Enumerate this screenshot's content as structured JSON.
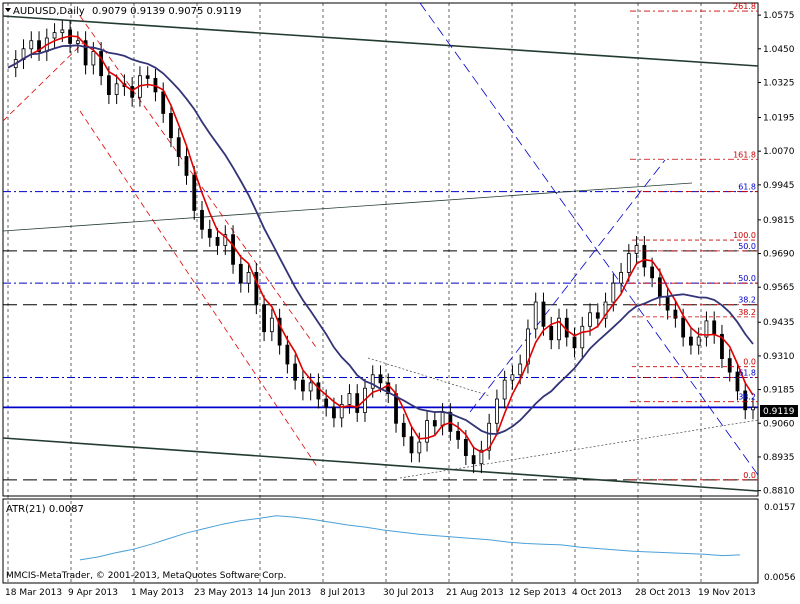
{
  "header": {
    "symbol_label": "AUDUSD,Daily",
    "ohlc_text": "0.9079 0.9139 0.9075 0.9119"
  },
  "indicator": {
    "label": "ATR(21) 0.0087",
    "axis_top": "0.0157",
    "axis_bottom": "0.0056"
  },
  "copyright": "MMCIS-MetaTrader, © 2001-2013, MetaQuotes Software Corp.",
  "colors": {
    "background": "#ffffff",
    "candle": "#000000",
    "ma_fast": "#e00000",
    "ma_slow": "#333377",
    "atr_line": "#4aa0d8",
    "channel": "#e00000",
    "trend_blue": "#0000cc",
    "trend_dark": "#233b2f",
    "fib": "#cc0000"
  },
  "chart_data": [
    {
      "type": "candlestick",
      "symbol": "AUDUSD",
      "timeframe": "Daily",
      "current_price": "0.9119",
      "ohlc_last": {
        "open": 0.9079,
        "high": 0.9139,
        "low": 0.9075,
        "close": 0.9119
      },
      "y_ticks": [
        "1.0575",
        "1.0450",
        "1.0325",
        "1.0195",
        "1.0070",
        "0.9945",
        "0.9815",
        "0.9690",
        "0.9565",
        "0.9435",
        "0.9310",
        "0.9185",
        "0.9060",
        "0.8935",
        "0.8810"
      ],
      "x_ticks": [
        "18 Mar 2013",
        "9 Apr 2013",
        "1 May 2013",
        "23 May 2013",
        "14 Jun 2013",
        "8 Jul 2013",
        "30 Jul 2013",
        "21 Aug 2013",
        "12 Sep 2013",
        "4 Oct 2013",
        "28 Oct 2013",
        "19 Nov 2013"
      ],
      "ylim": [
        0.879,
        1.062
      ],
      "horizontal_levels": [
        {
          "price": 0.9119,
          "style": "solid",
          "color": "#0000cc"
        },
        {
          "price": 0.992,
          "style": "dash-dot",
          "color": "#0000cc"
        },
        {
          "price": 0.97,
          "style": "long-dash",
          "color": "#000000"
        },
        {
          "price": 0.958,
          "style": "dash-dot",
          "color": "#0000cc"
        },
        {
          "price": 0.95,
          "style": "long-dash",
          "color": "#000000"
        },
        {
          "price": 0.923,
          "style": "dash-dot",
          "color": "#0000cc"
        },
        {
          "price": 0.885,
          "style": "long-dash",
          "color": "#000000"
        }
      ],
      "fib_left": [
        {
          "label": "100.0",
          "price": 1.064
        },
        {
          "label": "261.8",
          "price": 1.059
        },
        {
          "label": "161.8",
          "price": 1.004
        },
        {
          "label": "61.8",
          "price": 0.992
        },
        {
          "label": "50.0",
          "price": 0.97
        },
        {
          "label": "50.0",
          "price": 0.958
        },
        {
          "label": "38.2",
          "price": 0.95
        },
        {
          "label": "61.8",
          "price": 0.923
        },
        {
          "label": "38.2",
          "price": 0.914
        },
        {
          "label": "0.0",
          "price": 0.885
        }
      ],
      "fib_right": [
        {
          "label": "100.0",
          "price": 0.974
        },
        {
          "label": "38.2",
          "price": 0.9455
        },
        {
          "label": "0.0",
          "price": 0.927
        }
      ],
      "price_path": [
        [
          0,
          1.038
        ],
        [
          4,
          1.041
        ],
        [
          8,
          1.045
        ],
        [
          12,
          1.048
        ],
        [
          15,
          1.044
        ],
        [
          18,
          1.049
        ],
        [
          22,
          1.051
        ],
        [
          26,
          1.052
        ],
        [
          28,
          1.047
        ],
        [
          31,
          1.048
        ],
        [
          33,
          1.039
        ],
        [
          35,
          1.044
        ],
        [
          37,
          1.035
        ],
        [
          40,
          1.028
        ],
        [
          42,
          1.032
        ],
        [
          44,
          1.031
        ],
        [
          46,
          1.027
        ],
        [
          48,
          1.035
        ],
        [
          50,
          1.034
        ],
        [
          52,
          1.029
        ],
        [
          54,
          1.021
        ],
        [
          56,
          1.012
        ],
        [
          58,
          1.005
        ],
        [
          60,
          0.998
        ],
        [
          62,
          0.985
        ],
        [
          64,
          0.978
        ],
        [
          66,
          0.975
        ],
        [
          68,
          0.972
        ],
        [
          70,
          0.976
        ],
        [
          72,
          0.965
        ],
        [
          74,
          0.958
        ],
        [
          76,
          0.962
        ],
        [
          78,
          0.95
        ],
        [
          80,
          0.94
        ],
        [
          82,
          0.945
        ],
        [
          84,
          0.935
        ],
        [
          86,
          0.928
        ],
        [
          88,
          0.922
        ],
        [
          90,
          0.918
        ],
        [
          92,
          0.921
        ],
        [
          94,
          0.915
        ],
        [
          96,
          0.912
        ],
        [
          98,
          0.908
        ],
        [
          100,
          0.913
        ],
        [
          102,
          0.917
        ],
        [
          104,
          0.91
        ],
        [
          106,
          0.919
        ],
        [
          108,
          0.924
        ],
        [
          110,
          0.921
        ],
        [
          112,
          0.917
        ],
        [
          114,
          0.906
        ],
        [
          116,
          0.901
        ],
        [
          118,
          0.895
        ],
        [
          120,
          0.899
        ],
        [
          122,
          0.907
        ],
        [
          124,
          0.905
        ],
        [
          126,
          0.91
        ],
        [
          128,
          0.903
        ],
        [
          130,
          0.9
        ],
        [
          132,
          0.894
        ],
        [
          134,
          0.891
        ],
        [
          136,
          0.896
        ],
        [
          138,
          0.906
        ],
        [
          140,
          0.915
        ],
        [
          142,
          0.922
        ],
        [
          144,
          0.924
        ],
        [
          146,
          0.928
        ],
        [
          148,
          0.941
        ],
        [
          150,
          0.951
        ],
        [
          152,
          0.942
        ],
        [
          154,
          0.937
        ],
        [
          156,
          0.945
        ],
        [
          158,
          0.938
        ],
        [
          160,
          0.934
        ],
        [
          162,
          0.942
        ],
        [
          164,
          0.947
        ],
        [
          166,
          0.945
        ],
        [
          168,
          0.951
        ],
        [
          170,
          0.958
        ],
        [
          172,
          0.962
        ],
        [
          174,
          0.969
        ],
        [
          176,
          0.972
        ],
        [
          178,
          0.964
        ],
        [
          180,
          0.96
        ],
        [
          182,
          0.953
        ],
        [
          184,
          0.948
        ],
        [
          186,
          0.945
        ],
        [
          188,
          0.938
        ],
        [
          190,
          0.935
        ],
        [
          192,
          0.938
        ],
        [
          194,
          0.944
        ],
        [
          196,
          0.939
        ],
        [
          198,
          0.93
        ],
        [
          200,
          0.925
        ],
        [
          202,
          0.918
        ],
        [
          204,
          0.911
        ],
        [
          206,
          0.9119
        ]
      ]
    },
    {
      "type": "line",
      "name": "ATR(21)",
      "ylim": [
        0.0056,
        0.0157
      ],
      "values": [
        0.008,
        0.0084,
        0.009,
        0.0095,
        0.0102,
        0.011,
        0.0118,
        0.0124,
        0.013,
        0.0135,
        0.0138,
        0.0142,
        0.014,
        0.0137,
        0.0133,
        0.0129,
        0.0126,
        0.0122,
        0.0119,
        0.0116,
        0.0114,
        0.0112,
        0.011,
        0.0108,
        0.0105,
        0.0103,
        0.0102,
        0.0101,
        0.0098,
        0.0096,
        0.0094,
        0.0092,
        0.0091,
        0.009,
        0.0089,
        0.0088,
        0.0086,
        0.0087
      ]
    }
  ]
}
